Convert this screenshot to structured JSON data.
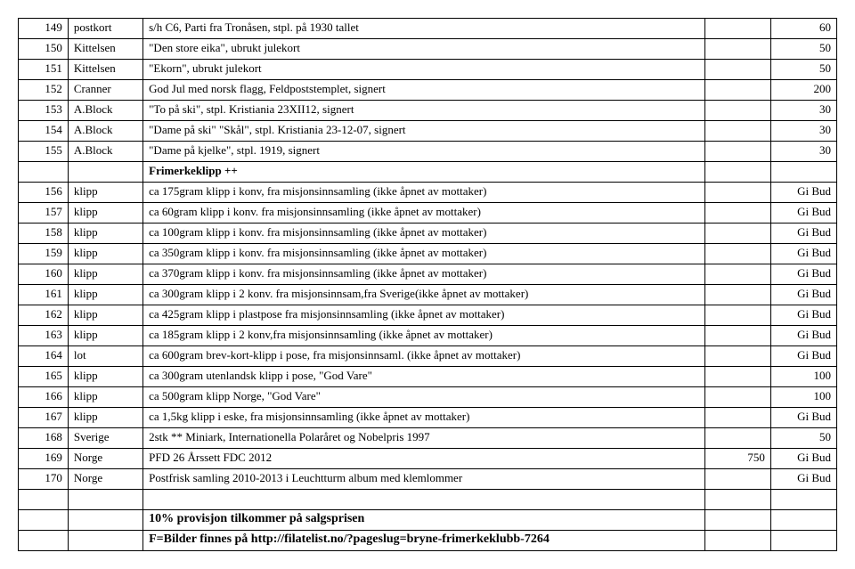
{
  "rows": [
    {
      "num": "149",
      "type": "postkort",
      "desc": "s/h C6, Parti fra Tronåsen, stpl. på 1930 tallet",
      "extra": "",
      "price": "60"
    },
    {
      "num": "150",
      "type": "Kittelsen",
      "desc": "\"Den store eika\", ubrukt julekort",
      "extra": "",
      "price": "50"
    },
    {
      "num": "151",
      "type": "Kittelsen",
      "desc": "\"Ekorn\", ubrukt julekort",
      "extra": "",
      "price": "50"
    },
    {
      "num": "152",
      "type": "Cranner",
      "desc": "God Jul med norsk flagg, Feldpoststemplet, signert",
      "extra": "",
      "price": "200"
    },
    {
      "num": "153",
      "type": "A.Block",
      "desc": "\"To på ski\", stpl. Kristiania 23XII12, signert",
      "extra": "",
      "price": "30"
    },
    {
      "num": "154",
      "type": "A.Block",
      "desc": "\"Dame på ski\" \"Skål\", stpl. Kristiania 23-12-07, signert",
      "extra": "",
      "price": "30"
    },
    {
      "num": "155",
      "type": "A.Block",
      "desc": "\"Dame på kjelke\", stpl. 1919, signert",
      "extra": "",
      "price": "30"
    },
    {
      "num": "",
      "type": "",
      "desc": "Frimerkeklipp ++",
      "extra": "",
      "price": "",
      "bold": true
    },
    {
      "num": "156",
      "type": "klipp",
      "desc": "ca 175gram klipp i konv, fra misjonsinnsamling              (ikke åpnet av mottaker)",
      "extra": "",
      "price": "Gi Bud"
    },
    {
      "num": "157",
      "type": "klipp",
      "desc": "ca  60gram klipp i konv. fra misjonsinnsamling              (ikke åpnet av mottaker)",
      "extra": "",
      "price": "Gi Bud"
    },
    {
      "num": "158",
      "type": "klipp",
      "desc": "ca 100gram klipp i konv. fra misjonsinnsamling             (ikke åpnet av mottaker)",
      "extra": "",
      "price": "Gi Bud"
    },
    {
      "num": "159",
      "type": "klipp",
      "desc": "ca 350gram klipp i konv. fra misjonsinnsamling             (ikke åpnet av mottaker)",
      "extra": "",
      "price": "Gi Bud"
    },
    {
      "num": "160",
      "type": "klipp",
      "desc": "ca 370gram klipp i konv. fra misjonsinnsamling            (ikke åpnet av mottaker)",
      "extra": "",
      "price": "Gi Bud"
    },
    {
      "num": "161",
      "type": "klipp",
      "desc": "ca 300gram klipp i 2 konv. fra misjonsinnsam,fra Sverige(ikke åpnet av mottaker)",
      "extra": "",
      "price": "Gi Bud"
    },
    {
      "num": "162",
      "type": "klipp",
      "desc": "ca 425gram klipp i plastpose fra misjonsinnsamling        (ikke åpnet av mottaker)",
      "extra": "",
      "price": "Gi Bud"
    },
    {
      "num": "163",
      "type": "klipp",
      "desc": "ca 185gram klipp i 2 konv,fra misjonsinnsamling           (ikke åpnet av mottaker)",
      "extra": "",
      "price": "Gi Bud"
    },
    {
      "num": "164",
      "type": "lot",
      "desc": "ca 600gram brev-kort-klipp i pose, fra misjonsinnsaml.  (ikke åpnet av mottaker)",
      "extra": "",
      "price": "Gi Bud"
    },
    {
      "num": "165",
      "type": "klipp",
      "desc": "ca 300gram utenlandsk klipp i pose, \"God Vare\"",
      "extra": "",
      "price": "100"
    },
    {
      "num": "166",
      "type": "klipp",
      "desc": "ca 500gram klipp Norge, \"God Vare\"",
      "extra": "",
      "price": "100"
    },
    {
      "num": "167",
      "type": "klipp",
      "desc": "ca 1,5kg klipp i eske, fra misjonsinnsamling                   (ikke åpnet av mottaker)",
      "extra": "",
      "price": "Gi Bud"
    },
    {
      "num": "168",
      "type": "Sverige",
      "desc": "2stk ** Miniark, Internationella Polaråret og Nobelpris 1997",
      "extra": "",
      "price": "50"
    },
    {
      "num": "169",
      "type": "Norge",
      "desc": "PFD 26 Årssett FDC 2012",
      "extra": "750",
      "price": "Gi Bud"
    },
    {
      "num": "170",
      "type": "Norge",
      "desc": "Postfrisk samling 2010-2013 i Leuchtturm album med klemlommer",
      "extra": "",
      "price": "Gi Bud"
    }
  ],
  "footer": {
    "line1": "10% provisjon tilkommer på salgsprisen",
    "line2": "F=Bilder finnes på http://filatelist.no/?pageslug=bryne-frimerkeklubb-7264"
  }
}
